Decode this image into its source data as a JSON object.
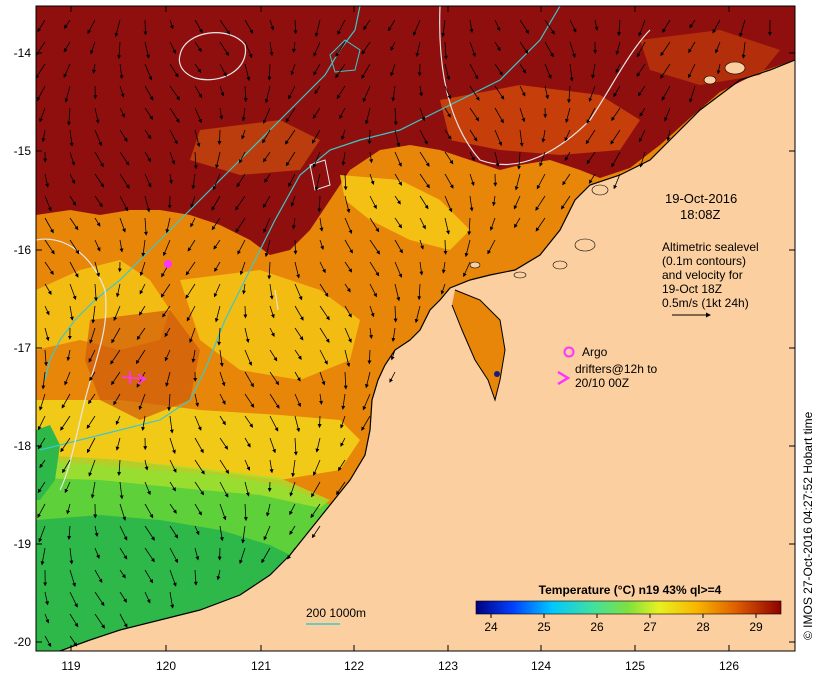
{
  "axes": {
    "lat_ticks": [
      "-14",
      "-15",
      "-16",
      "-17",
      "-18",
      "-19",
      "-20"
    ],
    "lon_ticks": [
      "119",
      "120",
      "121",
      "122",
      "123",
      "124",
      "125",
      "126"
    ]
  },
  "annotations": {
    "date": "19-Oct-2016",
    "time": "18:08Z",
    "sealevel_lines": [
      "Altimetric sealevel",
      "(0.1m contours)",
      "and velocity for",
      "19-Oct 18Z",
      "0.5m/s (1kt 24h)"
    ],
    "argo_label": "Argo",
    "drifters_lines": [
      "drifters@12h to",
      "20/10 00Z"
    ]
  },
  "colorbar": {
    "title": "Temperature (°C) n19 43% ql>=4",
    "ticks": [
      "24",
      "25",
      "26",
      "27",
      "28",
      "29"
    ]
  },
  "depth_legend": {
    "label": "200  1000m"
  },
  "credit": "© IMOS 27-Oct-2016 04:27:52 Hobart time",
  "colors": {
    "land": "#fbcf9f",
    "hot": "#8f0f0f",
    "warm": "#e8860a",
    "mild": "#f5c615",
    "cool": "#3fc43f",
    "contour": "#e8e8e8",
    "bathy": "#3cc8c8",
    "argo": "#ff33ff"
  }
}
